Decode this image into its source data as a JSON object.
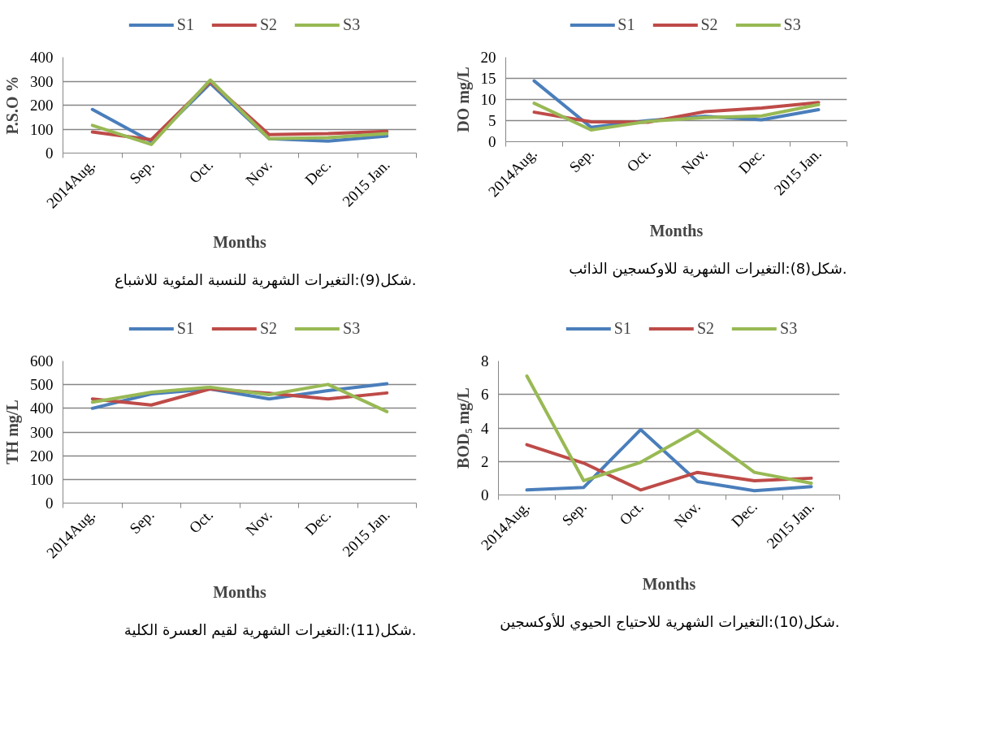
{
  "chart_data": [
    {
      "type": "line",
      "xlabel": "Months",
      "ylabel": "P.S.O %",
      "categories": [
        "2014Aug.",
        "Sep.",
        "Oct.",
        "Nov.",
        "Dec.",
        "2015 Jan."
      ],
      "ylim": [
        0,
        400
      ],
      "yticks": [
        0,
        100,
        200,
        300,
        400
      ],
      "grid": "y",
      "legend": "top",
      "line_style": "solid",
      "series": [
        {
          "name": "S1",
          "color": "#4a7ebb",
          "values": [
            182,
            48,
            291,
            60,
            50,
            71
          ]
        },
        {
          "name": "S2",
          "color": "#be4b48",
          "values": [
            88,
            56,
            298,
            77,
            81,
            91
          ]
        },
        {
          "name": "S3",
          "color": "#98b954",
          "values": [
            116,
            36,
            305,
            60,
            64,
            81
          ]
        }
      ],
      "annotations": [
        "شكل(9):التغيرات الشهرية للنسبة المئوية للاشباع."
      ]
    },
    {
      "type": "line",
      "xlabel": "Months",
      "ylabel": "DO mg/L",
      "categories": [
        "2014Aug.",
        "Sep.",
        "Oct.",
        "Nov.",
        "Dec.",
        "2015 Jan."
      ],
      "ylim": [
        0,
        20
      ],
      "yticks": [
        0,
        5,
        10,
        15,
        20
      ],
      "grid": "y",
      "legend": "top",
      "line_style": "solid",
      "series": [
        {
          "name": "S1",
          "color": "#4a7ebb",
          "values": [
            14.4,
            3.4,
            5.0,
            6.0,
            5.2,
            7.6
          ]
        },
        {
          "name": "S2",
          "color": "#be4b48",
          "values": [
            7.0,
            4.7,
            4.6,
            7.1,
            8.0,
            9.3
          ]
        },
        {
          "name": "S3",
          "color": "#98b954",
          "values": [
            9.1,
            2.8,
            4.8,
            5.7,
            6.1,
            8.8
          ]
        }
      ],
      "annotations": [
        "شكل(8):التغيرات الشهرية للاوكسجين الذائب."
      ]
    },
    {
      "type": "line",
      "xlabel": "Months",
      "ylabel": "TH mg/L",
      "categories": [
        "2014Aug.",
        "Sep.",
        "Oct.",
        "Nov.",
        "Dec.",
        "2015 Jan."
      ],
      "ylim": [
        0,
        600
      ],
      "yticks": [
        0,
        100,
        200,
        300,
        400,
        500,
        600
      ],
      "grid": "y",
      "legend": "top",
      "line_style": "solid",
      "series": [
        {
          "name": "S1",
          "color": "#4a7ebb",
          "values": [
            400,
            461,
            482,
            440,
            475,
            504
          ]
        },
        {
          "name": "S2",
          "color": "#be4b48",
          "values": [
            440,
            414,
            482,
            464,
            440,
            465
          ]
        },
        {
          "name": "S3",
          "color": "#98b954",
          "values": [
            426,
            468,
            489,
            458,
            501,
            386
          ]
        }
      ],
      "annotations": [
        "شكل(11):التغيرات الشهرية لقيم العسرة الكلية."
      ]
    },
    {
      "type": "line",
      "xlabel": "Months",
      "ylabel": "BOD₅ mg/L",
      "categories": [
        "2014Aug.",
        "Sep.",
        "Oct.",
        "Nov.",
        "Dec.",
        "2015 Jan."
      ],
      "ylim": [
        0,
        8
      ],
      "yticks": [
        0,
        2,
        4,
        6,
        8
      ],
      "grid": "y",
      "legend": "top",
      "line_style": "solid",
      "series": [
        {
          "name": "S1",
          "color": "#4a7ebb",
          "values": [
            0.3,
            0.45,
            3.9,
            0.8,
            0.25,
            0.5
          ]
        },
        {
          "name": "S2",
          "color": "#be4b48",
          "values": [
            3.0,
            1.9,
            0.3,
            1.35,
            0.85,
            1.0
          ]
        },
        {
          "name": "S3",
          "color": "#98b954",
          "values": [
            7.1,
            0.85,
            1.95,
            3.85,
            1.35,
            0.7
          ]
        }
      ],
      "annotations": [
        "شكل(10):التغيرات الشهرية للاحتياج الحيوي للأوكسجين."
      ]
    }
  ]
}
